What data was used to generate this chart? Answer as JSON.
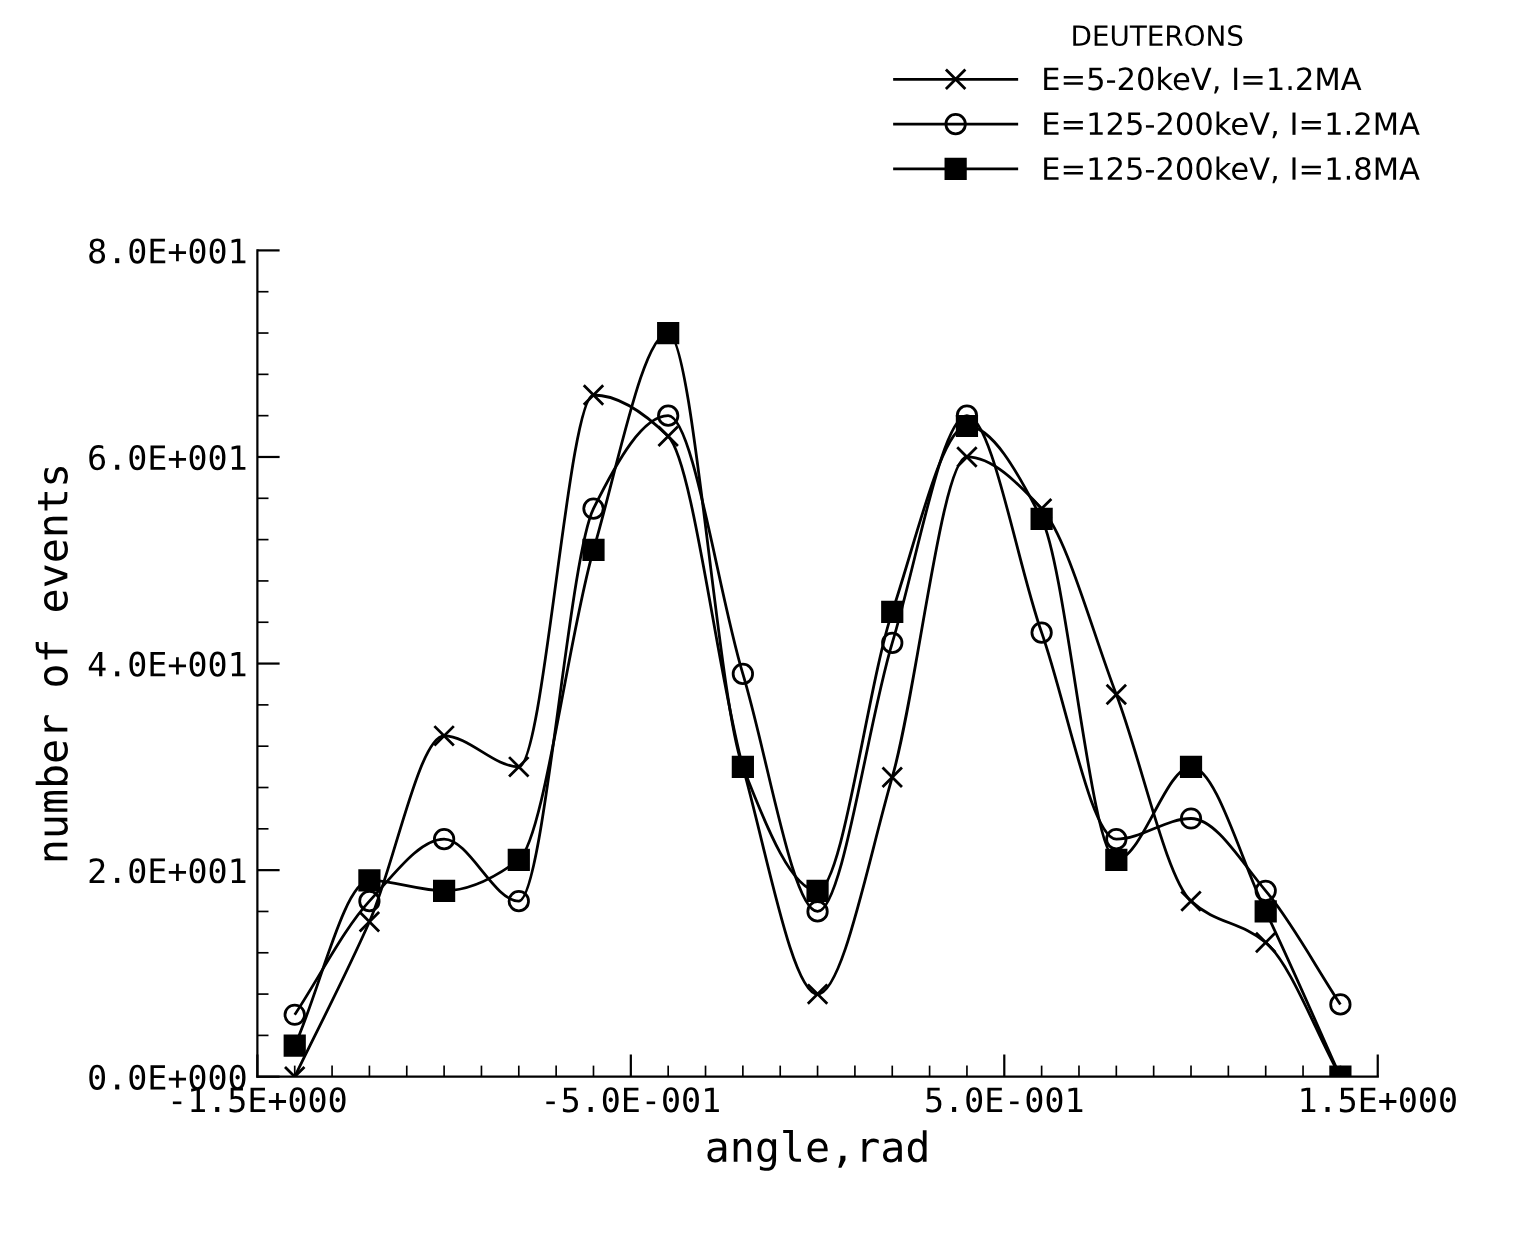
{
  "chart_data": {
    "type": "line",
    "legend_title": "DEUTERONS",
    "xlabel": "angle,rad",
    "ylabel": "number of events",
    "x": [
      -1.4,
      -1.2,
      -1.0,
      -0.8,
      -0.6,
      -0.4,
      -0.2,
      0.0,
      0.2,
      0.4,
      0.6,
      0.8,
      1.0,
      1.2,
      1.4
    ],
    "series": [
      {
        "name": "E=5-20keV, I=1.2MA",
        "color": "#000000",
        "marker": "cross",
        "values": [
          0,
          15,
          33,
          30,
          66,
          62,
          30,
          8,
          29,
          60,
          55,
          37,
          17,
          13,
          0
        ]
      },
      {
        "name": "E=125-200keV, I=1.2MA",
        "color": "#000000",
        "marker": "circle",
        "values": [
          6,
          17,
          23,
          17,
          55,
          64,
          39,
          16,
          42,
          64,
          43,
          23,
          25,
          18,
          7
        ]
      },
      {
        "name": "E=125-200keV, I=1.8MA",
        "color": "#000000",
        "marker": "square",
        "values": [
          3,
          19,
          18,
          21,
          51,
          72,
          30,
          18,
          45,
          63,
          54,
          21,
          30,
          16,
          0
        ]
      }
    ],
    "xlim": [
      -1.5,
      1.5
    ],
    "ylim": [
      0,
      80
    ],
    "xticks": [
      {
        "value": -1.5,
        "label": "-1.5E+000"
      },
      {
        "value": -0.5,
        "label": "-5.0E-001"
      },
      {
        "value": 0.5,
        "label": "5.0E-001"
      },
      {
        "value": 1.5,
        "label": "1.5E+000"
      }
    ],
    "yticks": [
      {
        "value": 0,
        "label": "0.0E+000"
      },
      {
        "value": 20,
        "label": "2.0E+001"
      },
      {
        "value": 40,
        "label": "4.0E+001"
      },
      {
        "value": 60,
        "label": "6.0E+001"
      },
      {
        "value": 80,
        "label": "8.0E+001"
      }
    ],
    "legend": "top right",
    "grid": false,
    "line_style": "solid"
  }
}
